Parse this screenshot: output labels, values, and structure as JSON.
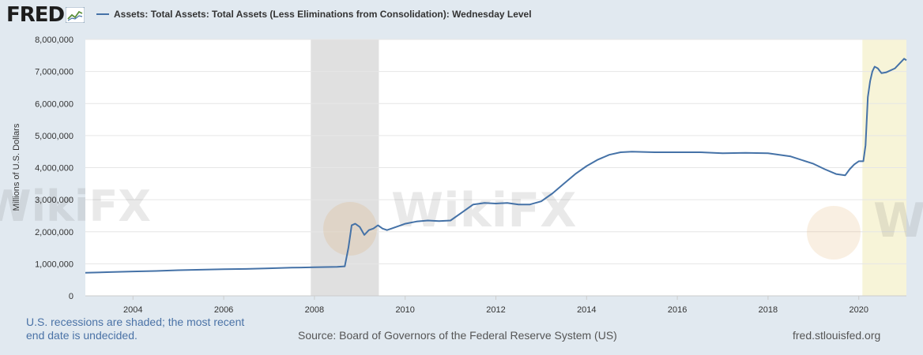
{
  "header": {
    "logo_text": "FRED",
    "logo_icon": "line-chart-icon",
    "legend_label": "Assets: Total Assets: Total Assets (Less Eliminations from Consolidation): Wednesday Level"
  },
  "footer": {
    "recession_note": "U.S. recessions are shaded; the most recent end date is undecided.",
    "source": "Source: Board of Governors of the Federal Reserve System (US)",
    "url": "fred.stlouisfed.org"
  },
  "watermark": {
    "text": "WikiFX"
  },
  "colors": {
    "page_bg": "#e1e9f0",
    "plot_bg": "#ffffff",
    "line": "#4572a7",
    "recession_shade": "#e0e0e0",
    "recent_shade": "#f7f4d8",
    "note_text": "#4a72a6"
  },
  "chart_data": {
    "type": "line",
    "title": "Assets: Total Assets: Total Assets (Less Eliminations from Consolidation): Wednesday Level",
    "xlabel": "",
    "ylabel": "Millions of U.S. Dollars",
    "xlim": [
      2002.95,
      2021.05
    ],
    "ylim": [
      0,
      8000000
    ],
    "x_ticks": [
      2004,
      2006,
      2008,
      2010,
      2012,
      2014,
      2016,
      2018,
      2020
    ],
    "y_ticks": [
      0,
      1000000,
      2000000,
      3000000,
      4000000,
      5000000,
      6000000,
      7000000,
      8000000
    ],
    "y_tick_labels": [
      "0",
      "1,000,000",
      "2,000,000",
      "3,000,000",
      "4,000,000",
      "5,000,000",
      "6,000,000",
      "7,000,000",
      "8,000,000"
    ],
    "grid": "horizontal",
    "legend_position": "top",
    "shaded_regions": [
      {
        "start": 2007.92,
        "end": 2009.42,
        "kind": "recession"
      },
      {
        "start": 2020.08,
        "end": 2021.05,
        "kind": "recession-undecided"
      }
    ],
    "series": [
      {
        "name": "Assets: Total Assets: Total Assets (Less Eliminations from Consolidation): Wednesday Level",
        "x": [
          2002.95,
          2003.5,
          2004.0,
          2004.5,
          2005.0,
          2005.5,
          2006.0,
          2006.5,
          2007.0,
          2007.5,
          2008.0,
          2008.5,
          2008.67,
          2008.75,
          2008.82,
          2008.9,
          2009.0,
          2009.1,
          2009.2,
          2009.3,
          2009.4,
          2009.5,
          2009.6,
          2009.7,
          2009.8,
          2010.0,
          2010.25,
          2010.5,
          2010.75,
          2011.0,
          2011.25,
          2011.5,
          2011.75,
          2012.0,
          2012.25,
          2012.5,
          2012.75,
          2013.0,
          2013.25,
          2013.5,
          2013.75,
          2014.0,
          2014.25,
          2014.5,
          2014.75,
          2015.0,
          2015.5,
          2016.0,
          2016.5,
          2017.0,
          2017.5,
          2018.0,
          2018.5,
          2019.0,
          2019.25,
          2019.5,
          2019.7,
          2019.8,
          2019.9,
          2020.0,
          2020.1,
          2020.15,
          2020.2,
          2020.25,
          2020.3,
          2020.35,
          2020.42,
          2020.5,
          2020.6,
          2020.8,
          2021.0,
          2021.05
        ],
        "values": [
          720000,
          740000,
          760000,
          775000,
          800000,
          815000,
          830000,
          840000,
          860000,
          880000,
          890000,
          905000,
          920000,
          1500000,
          2200000,
          2250000,
          2150000,
          1900000,
          2050000,
          2100000,
          2200000,
          2100000,
          2050000,
          2100000,
          2150000,
          2250000,
          2320000,
          2350000,
          2330000,
          2350000,
          2600000,
          2850000,
          2900000,
          2880000,
          2900000,
          2850000,
          2850000,
          2950000,
          3200000,
          3500000,
          3800000,
          4050000,
          4250000,
          4400000,
          4480000,
          4500000,
          4480000,
          4480000,
          4480000,
          4450000,
          4460000,
          4450000,
          4350000,
          4120000,
          3950000,
          3800000,
          3760000,
          3950000,
          4100000,
          4200000,
          4200000,
          4700000,
          6200000,
          6700000,
          7000000,
          7150000,
          7100000,
          6950000,
          6970000,
          7100000,
          7400000,
          7350000
        ]
      }
    ]
  }
}
